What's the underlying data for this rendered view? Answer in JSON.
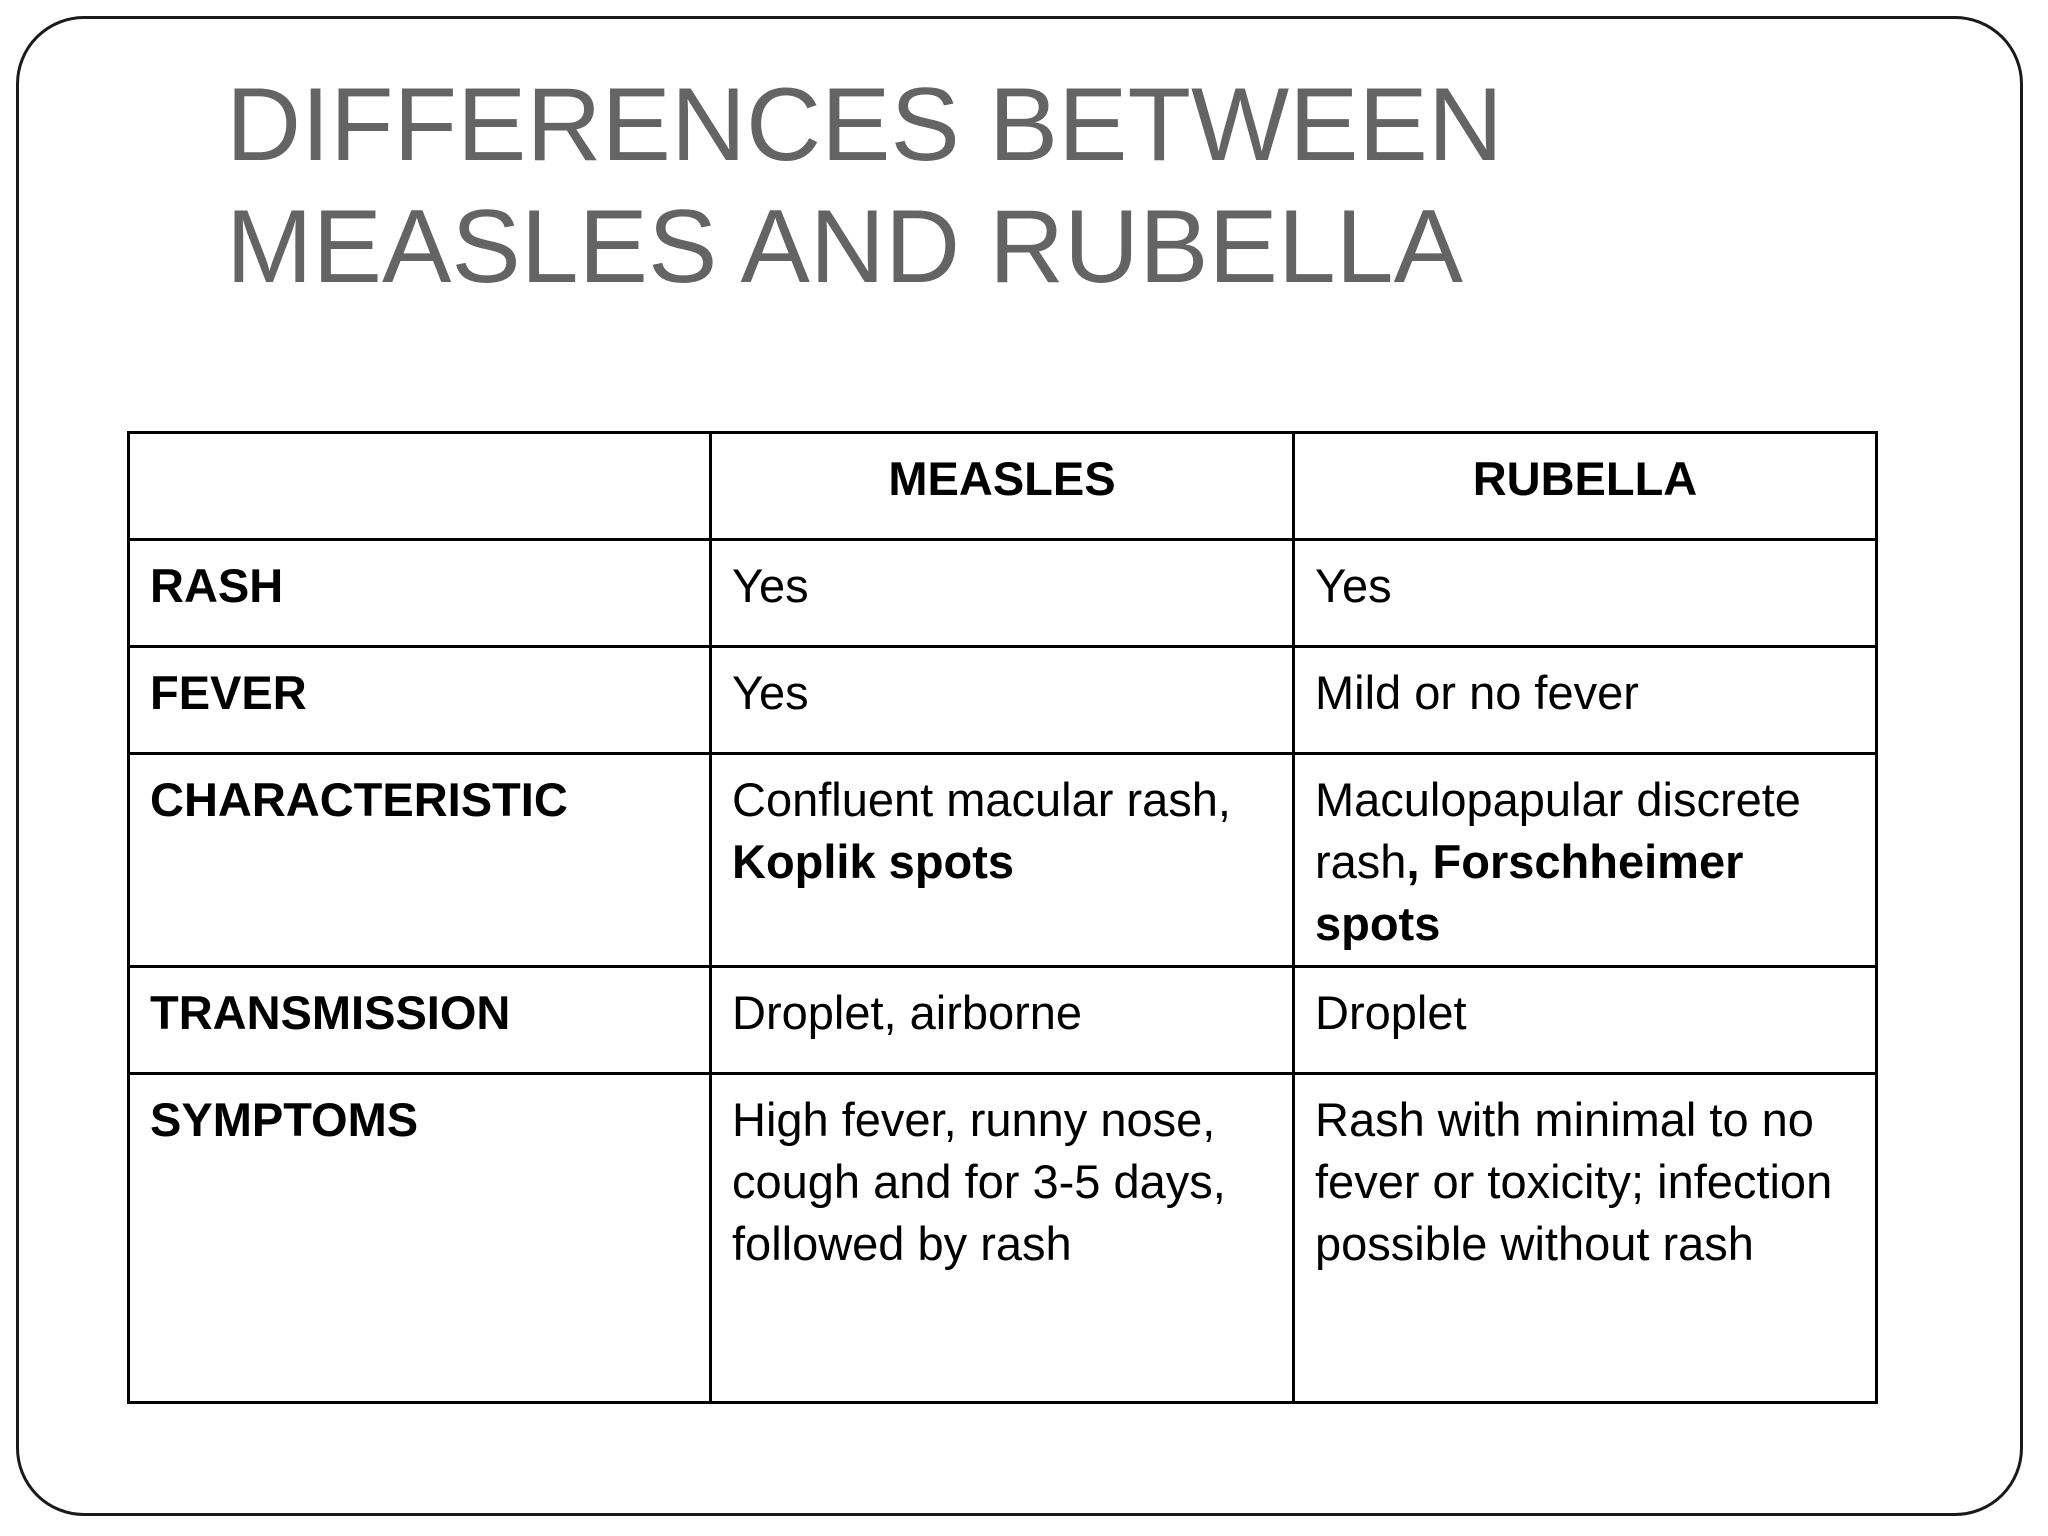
{
  "title": {
    "line1": "DIFFERENCES BETWEEN",
    "line2": "MEASLES AND RUBELLA"
  },
  "table": {
    "columns": [
      "",
      "MEASLES",
      "RUBELLA"
    ],
    "rows": {
      "rash": {
        "label": "RASH",
        "measles": "Yes",
        "rubella": "Yes"
      },
      "fever": {
        "label": "FEVER",
        "measles": "Yes",
        "rubella": "Mild or no fever"
      },
      "characteristic": {
        "label": "CHARACTERISTIC",
        "measles_text": "Confluent macular rash, ",
        "measles_bold": "Koplik spots",
        "rubella_text": "Maculopapular discrete rash",
        "rubella_bold": ", Forschheimer spots"
      },
      "transmission": {
        "label": "TRANSMISSION",
        "measles": "Droplet, airborne",
        "rubella": "Droplet"
      },
      "symptoms": {
        "label": "SYMPTOMS",
        "measles": "High fever, runny nose, cough and for 3-5 days, followed by rash",
        "rubella": "Rash with minimal to no fever or toxicity; infection possible without rash"
      }
    }
  }
}
